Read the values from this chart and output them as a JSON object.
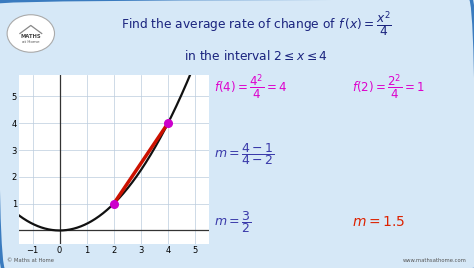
{
  "bg_color": "#d6e8f7",
  "border_color": "#3a7bbf",
  "graph_xlim": [
    -1.5,
    5.5
  ],
  "graph_ylim": [
    -0.5,
    5.8
  ],
  "graph_xticks": [
    -1,
    0,
    1,
    2,
    3,
    4,
    5
  ],
  "graph_yticks": [
    1,
    2,
    3,
    4,
    5
  ],
  "curve_color": "#111111",
  "secant_color": "#cc1100",
  "point1": [
    2,
    1
  ],
  "point2": [
    4,
    4
  ],
  "point_color": "#cc00cc",
  "magenta_color": "#dd00cc",
  "red_color": "#dd2200",
  "dark_blue": "#1a237e",
  "mid_blue": "#3a3aaa",
  "footer_left": "© Maths at Home",
  "footer_right": "www.mathsathome.com"
}
